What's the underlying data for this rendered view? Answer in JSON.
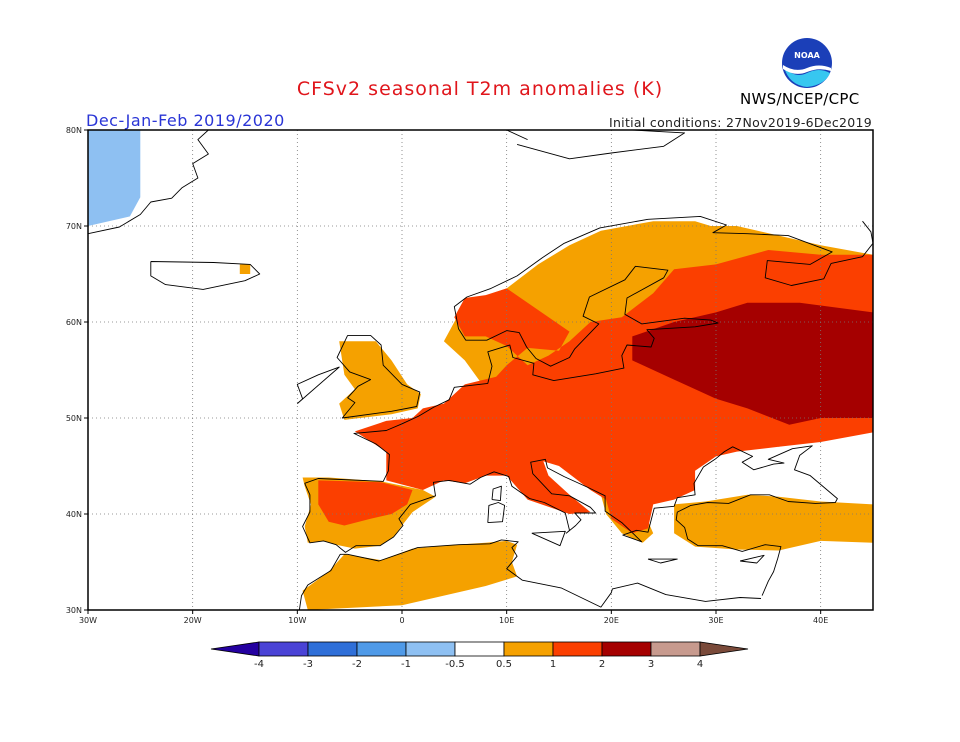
{
  "header": {
    "title": "CFSv2 seasonal T2m anomalies (K)",
    "season": "Dec-Jan-Feb 2019/2020",
    "initial_conditions": "Initial conditions: 27Nov2019-6Dec2019",
    "agency": "NWS/NCEP/CPC",
    "logo_text": "NOAA"
  },
  "map": {
    "lon_range": [
      -30,
      45
    ],
    "lat_range": [
      30,
      80
    ],
    "lon_ticks": [
      {
        "value": -30,
        "label": "30W"
      },
      {
        "value": -20,
        "label": "20W"
      },
      {
        "value": -10,
        "label": "10W"
      },
      {
        "value": 0,
        "label": "0"
      },
      {
        "value": 10,
        "label": "10E"
      },
      {
        "value": 20,
        "label": "20E"
      },
      {
        "value": 30,
        "label": "30E"
      },
      {
        "value": 40,
        "label": "40E"
      }
    ],
    "lat_ticks": [
      {
        "value": 30,
        "label": "30N"
      },
      {
        "value": 40,
        "label": "40N"
      },
      {
        "value": 50,
        "label": "50N"
      },
      {
        "value": 60,
        "label": "60N"
      },
      {
        "value": 70,
        "label": "70N"
      },
      {
        "value": 80,
        "label": "80N"
      }
    ],
    "gridlines": "dotted",
    "anomaly_regions": [
      {
        "name": "greenland-cold",
        "level": "-1",
        "poly": [
          [
            -30,
            80
          ],
          [
            -25,
            80
          ],
          [
            -25,
            73
          ],
          [
            -26,
            71
          ],
          [
            -30,
            70
          ]
        ]
      },
      {
        "name": "iceland-warm-spot",
        "level": "0.5",
        "poly": [
          [
            -15.5,
            66
          ],
          [
            -14.5,
            66
          ],
          [
            -14.5,
            65
          ],
          [
            -15.5,
            65
          ]
        ]
      },
      {
        "name": "scandinavia-warm",
        "level": "0.5",
        "poly": [
          [
            4,
            58
          ],
          [
            6,
            62
          ],
          [
            10,
            63.5
          ],
          [
            13,
            66
          ],
          [
            16,
            68
          ],
          [
            19,
            69.5
          ],
          [
            24,
            70.5
          ],
          [
            28,
            70.5
          ],
          [
            31,
            69.5
          ],
          [
            32,
            66
          ],
          [
            30,
            61
          ],
          [
            26,
            56
          ],
          [
            20,
            54.5
          ],
          [
            12,
            53
          ],
          [
            8,
            53
          ],
          [
            6,
            56
          ]
        ]
      },
      {
        "name": "russia-north-warm",
        "level": "0.5",
        "poly": [
          [
            27,
            70
          ],
          [
            32,
            70
          ],
          [
            40,
            68
          ],
          [
            45,
            67
          ],
          [
            45,
            52
          ],
          [
            44,
            50
          ],
          [
            40,
            48
          ],
          [
            36,
            47
          ],
          [
            33,
            48
          ],
          [
            29,
            51
          ],
          [
            28,
            56
          ],
          [
            26,
            60
          ]
        ]
      },
      {
        "name": "uk-warm",
        "level": "0.5",
        "poly": [
          [
            -6,
            58
          ],
          [
            -2.5,
            58
          ],
          [
            -1,
            56
          ],
          [
            0.5,
            53.5
          ],
          [
            1.8,
            52.5
          ],
          [
            1.5,
            51
          ],
          [
            -1,
            50.4
          ],
          [
            -5.5,
            49.8
          ],
          [
            -6,
            51.5
          ],
          [
            -4.5,
            53
          ],
          [
            -5.5,
            54.5
          ]
        ]
      },
      {
        "name": "iberia-warm",
        "level": "0.5",
        "poly": [
          [
            -9.5,
            43.8
          ],
          [
            -7,
            43.8
          ],
          [
            -2,
            43.4
          ],
          [
            2,
            42.5
          ],
          [
            3.2,
            41.8
          ],
          [
            1,
            40.2
          ],
          [
            0,
            38.8
          ],
          [
            -0.8,
            37.6
          ],
          [
            -2.1,
            36.7
          ],
          [
            -4.5,
            36.4
          ],
          [
            -6.3,
            36.8
          ],
          [
            -7.4,
            37.2
          ],
          [
            -9,
            37
          ],
          [
            -9.3,
            38.7
          ],
          [
            -8.7,
            41
          ],
          [
            -9.3,
            42.9
          ]
        ]
      },
      {
        "name": "north-africa-warm",
        "level": "0.5",
        "poly": [
          [
            -9,
            30
          ],
          [
            -9.5,
            32
          ],
          [
            -7,
            34
          ],
          [
            -5.5,
            35.8
          ],
          [
            -2,
            35.2
          ],
          [
            1,
            36.4
          ],
          [
            5,
            36.8
          ],
          [
            8,
            37
          ],
          [
            10,
            37.2
          ],
          [
            11,
            36.8
          ],
          [
            10.5,
            35
          ],
          [
            11,
            33.5
          ],
          [
            8,
            32.5
          ],
          [
            4,
            31.5
          ],
          [
            0,
            30.5
          ]
        ]
      },
      {
        "name": "turkey-warm",
        "level": "0.5",
        "poly": [
          [
            26,
            38
          ],
          [
            26,
            41
          ],
          [
            29,
            41.3
          ],
          [
            33,
            42
          ],
          [
            36,
            41.8
          ],
          [
            40,
            41.3
          ],
          [
            45,
            41
          ],
          [
            45,
            37
          ],
          [
            40,
            37.2
          ],
          [
            36,
            36.2
          ],
          [
            32,
            36.3
          ],
          [
            28,
            36.6
          ]
        ]
      },
      {
        "name": "balkans-warm",
        "level": "0.5",
        "poly": [
          [
            19,
            42
          ],
          [
            19.5,
            40
          ],
          [
            21,
            38
          ],
          [
            23,
            37
          ],
          [
            24,
            38
          ],
          [
            23,
            40.5
          ],
          [
            22,
            42
          ]
        ]
      },
      {
        "name": "europe-core-1K",
        "level": "1",
        "poly": [
          [
            -4.5,
            48.6
          ],
          [
            -1.5,
            46.5
          ],
          [
            -1.5,
            43.5
          ],
          [
            2,
            42.5
          ],
          [
            4,
            43.5
          ],
          [
            6,
            43.2
          ],
          [
            8,
            44
          ],
          [
            10,
            44
          ],
          [
            12,
            41.5
          ],
          [
            16,
            40
          ],
          [
            18,
            40.2
          ],
          [
            16,
            42
          ],
          [
            14,
            44
          ],
          [
            13.5,
            45.5
          ],
          [
            15,
            45
          ],
          [
            18,
            42.5
          ],
          [
            19.5,
            41.5
          ],
          [
            20,
            39.5
          ],
          [
            22,
            38
          ],
          [
            23.5,
            38.5
          ],
          [
            24,
            41
          ],
          [
            26,
            41.5
          ],
          [
            28,
            42.5
          ],
          [
            28,
            44.5
          ],
          [
            30,
            46
          ],
          [
            32,
            46.5
          ],
          [
            36,
            47
          ],
          [
            40,
            47.5
          ],
          [
            45,
            48.5
          ],
          [
            45,
            67
          ],
          [
            40,
            67
          ],
          [
            35,
            67.5
          ],
          [
            30,
            66
          ],
          [
            26,
            65.5
          ],
          [
            24,
            63
          ],
          [
            21,
            60.5
          ],
          [
            18,
            60
          ],
          [
            16,
            58
          ],
          [
            14,
            56.5
          ],
          [
            12,
            55.5
          ],
          [
            10,
            57.5
          ],
          [
            8,
            58.5
          ],
          [
            6,
            58.5
          ],
          [
            5,
            60.5
          ],
          [
            6,
            62.5
          ],
          [
            8,
            62.8
          ],
          [
            10,
            63.5
          ],
          [
            12,
            62
          ],
          [
            16,
            59
          ],
          [
            15,
            57
          ],
          [
            12,
            57.3
          ],
          [
            10,
            55.5
          ],
          [
            9,
            54.3
          ],
          [
            6,
            53.5
          ],
          [
            4,
            51.5
          ],
          [
            2,
            51
          ],
          [
            1,
            50
          ],
          [
            -1.5,
            49.7
          ]
        ]
      },
      {
        "name": "iberia-1K",
        "level": "1",
        "poly": [
          [
            -8,
            43.5
          ],
          [
            -2,
            43.3
          ],
          [
            1,
            42.5
          ],
          [
            0.5,
            41
          ],
          [
            -1,
            40
          ],
          [
            -3,
            39.5
          ],
          [
            -5.5,
            38.8
          ],
          [
            -7,
            39.2
          ],
          [
            -8,
            41
          ]
        ]
      },
      {
        "name": "russia-2K",
        "level": "2",
        "poly": [
          [
            22,
            56
          ],
          [
            22,
            58.5
          ],
          [
            26,
            60
          ],
          [
            30,
            61
          ],
          [
            33,
            62
          ],
          [
            38,
            62
          ],
          [
            45,
            61
          ],
          [
            45,
            50
          ],
          [
            40,
            50
          ],
          [
            37,
            49.3
          ],
          [
            33,
            51
          ],
          [
            30,
            52
          ],
          [
            26,
            54
          ]
        ]
      }
    ],
    "colorbar": {
      "levels": [
        "-4",
        "-3",
        "-2",
        "-1",
        "-0.5",
        "0.5",
        "1",
        "2",
        "3",
        "4"
      ],
      "colors": [
        "#2400a0",
        "#4a43d6",
        "#2f6fd8",
        "#4f9ae8",
        "#8ec0f2",
        "#ffffff",
        "#f5a100",
        "#fb3f00",
        "#a50000",
        "#c79a8e",
        "#7a4a3a"
      ]
    },
    "level_colors": {
      "-1": "#8ec0f2",
      "0.5": "#f5a100",
      "1": "#fb3f00",
      "2": "#a50000"
    }
  }
}
